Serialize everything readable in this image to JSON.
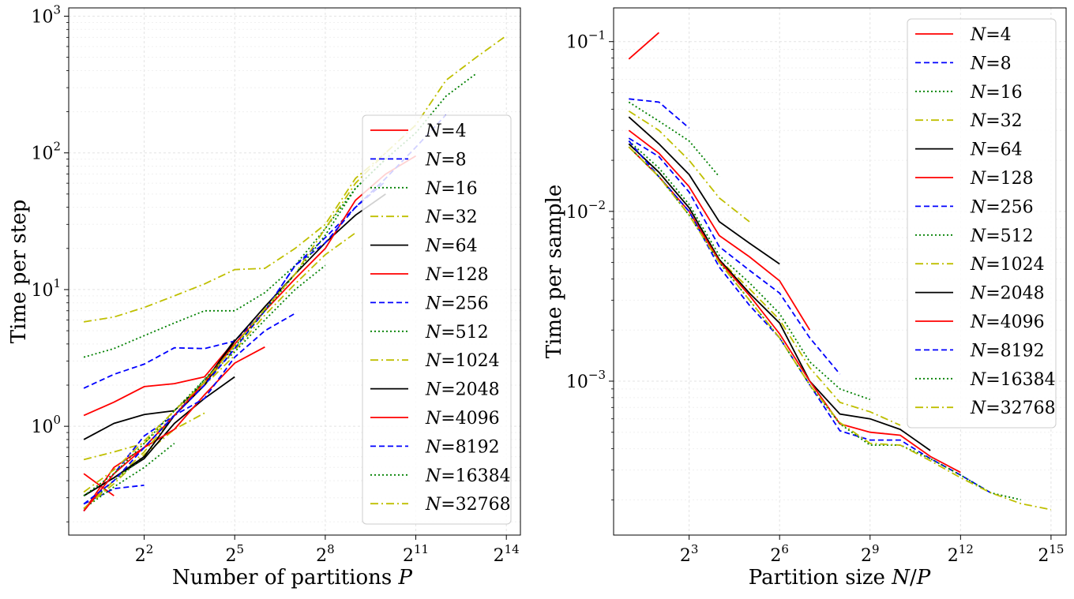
{
  "chart_data": [
    {
      "type": "line",
      "title": "",
      "xlabel": "Number of partitions P",
      "ylabel": "Time per step",
      "xscale": "log2",
      "yscale": "log10",
      "xlim": [
        0.707,
        22627
      ],
      "ylim": [
        0.16,
        1150
      ],
      "xticks": [
        4,
        32,
        256,
        2048,
        16384
      ],
      "xtick_labels": [
        [
          "2",
          "2"
        ],
        [
          "2",
          "5"
        ],
        [
          "2",
          "8"
        ],
        [
          "2",
          "11"
        ],
        [
          "2",
          "14"
        ]
      ],
      "yticks": [
        1,
        10,
        100,
        1000
      ],
      "ytick_labels": [
        [
          "10",
          "0"
        ],
        [
          "10",
          "1"
        ],
        [
          "10",
          "2"
        ],
        [
          "10",
          "3"
        ]
      ],
      "grid": true,
      "legend_position": "lower-right",
      "series": [
        {
          "name": "4",
          "color": "#ff0000",
          "style": "solid",
          "x": [
            1,
            2
          ],
          "y": [
            0.45,
            0.31
          ]
        },
        {
          "name": "8",
          "color": "#0000ff",
          "style": "dashed",
          "x": [
            1,
            2,
            4
          ],
          "y": [
            0.27,
            0.35,
            0.37
          ]
        },
        {
          "name": "16",
          "color": "#008000",
          "style": "dotted",
          "x": [
            1,
            2,
            4,
            8
          ],
          "y": [
            0.25,
            0.36,
            0.5,
            0.75
          ]
        },
        {
          "name": "32",
          "color": "#bfbf00",
          "style": "dashdot",
          "x": [
            1,
            2,
            4,
            8,
            16
          ],
          "y": [
            0.25,
            0.38,
            0.62,
            0.95,
            1.25
          ]
        },
        {
          "name": "64",
          "color": "#000000",
          "style": "solid",
          "x": [
            1,
            2,
            4,
            8,
            16,
            32
          ],
          "y": [
            0.31,
            0.42,
            0.58,
            1.05,
            1.6,
            2.3
          ]
        },
        {
          "name": "128",
          "color": "#ff0000",
          "style": "solid",
          "x": [
            1,
            2,
            4,
            8,
            16,
            32,
            64
          ],
          "y": [
            0.24,
            0.5,
            0.7,
            0.95,
            1.7,
            2.9,
            3.8
          ]
        },
        {
          "name": "256",
          "color": "#0000ff",
          "style": "dashed",
          "x": [
            1,
            2,
            4,
            8,
            16,
            32,
            64,
            128
          ],
          "y": [
            0.24,
            0.45,
            0.85,
            1.2,
            1.6,
            3.2,
            5.0,
            6.7
          ]
        },
        {
          "name": "512",
          "color": "#008000",
          "style": "dotted",
          "x": [
            1,
            2,
            4,
            8,
            16,
            32,
            64,
            128,
            256
          ],
          "y": [
            0.25,
            0.4,
            0.6,
            1.2,
            2.2,
            3.5,
            6.0,
            10,
            15
          ]
        },
        {
          "name": "1024",
          "color": "#bfbf00",
          "style": "dashdot",
          "x": [
            1,
            2,
            4,
            8,
            16,
            32,
            64,
            128,
            256,
            512
          ],
          "y": [
            0.25,
            0.4,
            0.65,
            1.2,
            2.1,
            3.6,
            6.5,
            11,
            18,
            26
          ]
        },
        {
          "name": "2048",
          "color": "#000000",
          "style": "solid",
          "x": [
            1,
            2,
            4,
            8,
            16,
            32,
            64,
            128,
            256,
            512,
            1024
          ],
          "y": [
            0.31,
            0.42,
            0.6,
            1.2,
            2.0,
            4.2,
            7.5,
            13,
            22,
            35,
            50
          ]
        },
        {
          "name": "4096",
          "color": "#ff0000",
          "style": "solid",
          "x": [
            1,
            2,
            4,
            8,
            16,
            32,
            64,
            128,
            256,
            512,
            1024,
            2048
          ],
          "y": [
            0.24,
            0.45,
            0.7,
            1.2,
            2.1,
            4.0,
            7.0,
            12,
            20,
            45,
            70,
            95
          ]
        },
        {
          "name": "8192",
          "color": "#0000ff",
          "style": "dashed",
          "x": [
            1,
            2,
            4,
            8,
            16,
            32,
            64,
            128,
            256,
            512,
            1024,
            2048,
            4096
          ],
          "y": [
            0.27,
            0.4,
            0.7,
            1.2,
            2.0,
            3.7,
            7.0,
            15,
            22,
            40,
            65,
            110,
            190
          ]
        },
        {
          "name": "16384",
          "color": "#008000",
          "style": "dotted",
          "x": [
            1,
            2,
            4,
            8,
            16,
            32,
            64,
            128,
            256,
            512,
            1024,
            2048,
            4096,
            8192
          ],
          "y": [
            0.31,
            0.45,
            0.75,
            1.3,
            2.2,
            3.8,
            7.0,
            13,
            25,
            55,
            90,
            140,
            260,
            380
          ]
        },
        {
          "name": "32768",
          "color": "#bfbf00",
          "style": "dashdot",
          "x": [
            1,
            2,
            4,
            8,
            16,
            32,
            64,
            128,
            256,
            512,
            1024,
            2048,
            4096,
            8192,
            16384
          ],
          "y": [
            0.33,
            0.48,
            0.78,
            1.3,
            2.1,
            3.9,
            7.2,
            13,
            28,
            60,
            100,
            160,
            340,
            500,
            720
          ]
        }
      ],
      "extra_lines": [
        {
          "color": "#ff0000",
          "style": "solid",
          "x": [
            1,
            2,
            4,
            8,
            16,
            32
          ],
          "y": [
            1.2,
            1.5,
            1.95,
            2.05,
            2.3,
            4.2
          ]
        },
        {
          "color": "#000000",
          "style": "solid",
          "x": [
            1,
            2,
            4,
            8,
            16,
            32
          ],
          "y": [
            0.8,
            1.05,
            1.22,
            1.3,
            2.1,
            4.3
          ]
        },
        {
          "color": "#bfbf00",
          "style": "dashdot",
          "x": [
            1,
            2,
            4,
            8,
            16,
            32
          ],
          "y": [
            0.57,
            0.65,
            0.75,
            1.2,
            2.0,
            3.3
          ]
        },
        {
          "color": "#0000ff",
          "style": "dashed",
          "x": [
            1,
            2,
            4,
            8,
            16,
            32,
            64,
            128,
            256,
            512,
            1024
          ],
          "y": [
            1.9,
            2.4,
            2.85,
            3.75,
            3.7,
            4.2,
            7.0,
            15,
            24,
            40,
            62
          ]
        },
        {
          "color": "#008000",
          "style": "dotted",
          "x": [
            1,
            2,
            4,
            8,
            16,
            32,
            64,
            128,
            256,
            512,
            1024
          ],
          "y": [
            3.2,
            3.7,
            4.6,
            5.7,
            7.0,
            7.0,
            9.5,
            15,
            28,
            55,
            90
          ]
        },
        {
          "color": "#bfbf00",
          "style": "dashdot",
          "x": [
            1,
            2,
            4,
            8,
            16,
            32,
            64,
            128,
            256,
            512,
            1024
          ],
          "y": [
            5.8,
            6.3,
            7.4,
            9.0,
            11,
            14,
            14.3,
            20,
            30,
            65,
            100
          ]
        }
      ]
    },
    {
      "type": "line",
      "title": "",
      "xlabel": "Partition size N/P",
      "ylabel": "Time per sample",
      "xscale": "log2",
      "yscale": "log10",
      "xlim": [
        1.41,
        46341
      ],
      "ylim": [
        0.000124,
        0.158
      ],
      "xticks": [
        8,
        64,
        512,
        4096,
        32768
      ],
      "xtick_labels": [
        [
          "2",
          "3"
        ],
        [
          "2",
          "6"
        ],
        [
          "2",
          "9"
        ],
        [
          "2",
          "12"
        ],
        [
          "2",
          "15"
        ]
      ],
      "yticks": [
        0.001,
        0.01,
        0.1
      ],
      "ytick_labels": [
        [
          "10",
          "−3"
        ],
        [
          "10",
          "−2"
        ],
        [
          "10",
          "−1"
        ]
      ],
      "grid": true,
      "legend_position": "upper-right",
      "series": [
        {
          "name": "4",
          "color": "#ff0000",
          "style": "solid",
          "x": [
            2,
            4
          ],
          "y": [
            0.079,
            0.113
          ]
        },
        {
          "name": "8",
          "color": "#0000ff",
          "style": "dashed",
          "x": [
            2,
            4,
            8
          ],
          "y": [
            0.046,
            0.044,
            0.031
          ]
        },
        {
          "name": "16",
          "color": "#008000",
          "style": "dotted",
          "x": [
            2,
            4,
            8,
            16
          ],
          "y": [
            0.044,
            0.034,
            0.026,
            0.016
          ]
        },
        {
          "name": "32",
          "color": "#bfbf00",
          "style": "dashdot",
          "x": [
            2,
            4,
            8,
            16,
            32
          ],
          "y": [
            0.039,
            0.03,
            0.02,
            0.012,
            0.0087
          ]
        },
        {
          "name": "64",
          "color": "#000000",
          "style": "solid",
          "x": [
            2,
            4,
            8,
            16,
            32,
            64
          ],
          "y": [
            0.036,
            0.025,
            0.0165,
            0.0087,
            0.0065,
            0.0049
          ]
        },
        {
          "name": "128",
          "color": "#ff0000",
          "style": "solid",
          "x": [
            2,
            4,
            8,
            16,
            32,
            64,
            128
          ],
          "y": [
            0.03,
            0.022,
            0.014,
            0.0072,
            0.0054,
            0.0039,
            0.002
          ]
        },
        {
          "name": "256",
          "color": "#0000ff",
          "style": "dashed",
          "x": [
            2,
            4,
            8,
            16,
            32,
            64,
            128,
            256
          ],
          "y": [
            0.027,
            0.021,
            0.013,
            0.0062,
            0.0045,
            0.0033,
            0.0018,
            0.0011
          ]
        },
        {
          "name": "512",
          "color": "#008000",
          "style": "dotted",
          "x": [
            2,
            4,
            8,
            16,
            32,
            64,
            128,
            256,
            512
          ],
          "y": [
            0.026,
            0.018,
            0.011,
            0.0055,
            0.0038,
            0.0025,
            0.0013,
            0.0009,
            0.00078
          ]
        },
        {
          "name": "1024",
          "color": "#bfbf00",
          "style": "dashdot",
          "x": [
            2,
            4,
            8,
            16,
            32,
            64,
            128,
            256,
            512,
            1024
          ],
          "y": [
            0.025,
            0.017,
            0.0105,
            0.0052,
            0.0035,
            0.0023,
            0.0012,
            0.00075,
            0.00066,
            0.00055
          ]
        },
        {
          "name": "2048",
          "color": "#000000",
          "style": "solid",
          "x": [
            2,
            4,
            8,
            16,
            32,
            64,
            128,
            256,
            512,
            1024,
            2048
          ],
          "y": [
            0.025,
            0.017,
            0.0105,
            0.0052,
            0.0033,
            0.0022,
            0.001,
            0.00064,
            0.0006,
            0.00052,
            0.00039
          ]
        },
        {
          "name": "4096",
          "color": "#ff0000",
          "style": "solid",
          "x": [
            2,
            4,
            8,
            16,
            32,
            64,
            128,
            256,
            512,
            1024,
            2048,
            4096
          ],
          "y": [
            0.024,
            0.016,
            0.01,
            0.0051,
            0.0032,
            0.0019,
            0.001,
            0.00056,
            0.0005,
            0.00048,
            0.00036,
            0.00029
          ]
        },
        {
          "name": "8192",
          "color": "#0000ff",
          "style": "dashed",
          "x": [
            2,
            4,
            8,
            16,
            32,
            64,
            128,
            256,
            512,
            1024,
            2048,
            4096,
            8192
          ],
          "y": [
            0.026,
            0.016,
            0.01,
            0.0047,
            0.0028,
            0.0018,
            0.00095,
            0.00051,
            0.00045,
            0.00045,
            0.00035,
            0.00028,
            0.00022
          ]
        },
        {
          "name": "16384",
          "color": "#008000",
          "style": "dotted",
          "x": [
            2,
            4,
            8,
            16,
            32,
            64,
            128,
            256,
            512,
            1024,
            2048,
            4096,
            8192,
            16384
          ],
          "y": [
            0.024,
            0.016,
            0.0095,
            0.005,
            0.003,
            0.0018,
            0.00095,
            0.00056,
            0.00042,
            0.00042,
            0.00035,
            0.00028,
            0.00022,
            0.0002
          ]
        },
        {
          "name": "32768",
          "color": "#bfbf00",
          "style": "dashdot",
          "x": [
            2,
            4,
            8,
            16,
            32,
            64,
            128,
            256,
            512,
            1024,
            2048,
            4096,
            8192,
            16384,
            32768
          ],
          "y": [
            0.024,
            0.016,
            0.0095,
            0.005,
            0.003,
            0.0018,
            0.00095,
            0.00057,
            0.00043,
            0.00042,
            0.00034,
            0.00027,
            0.00022,
            0.00019,
            0.000175
          ]
        }
      ],
      "extra_lines": []
    }
  ]
}
